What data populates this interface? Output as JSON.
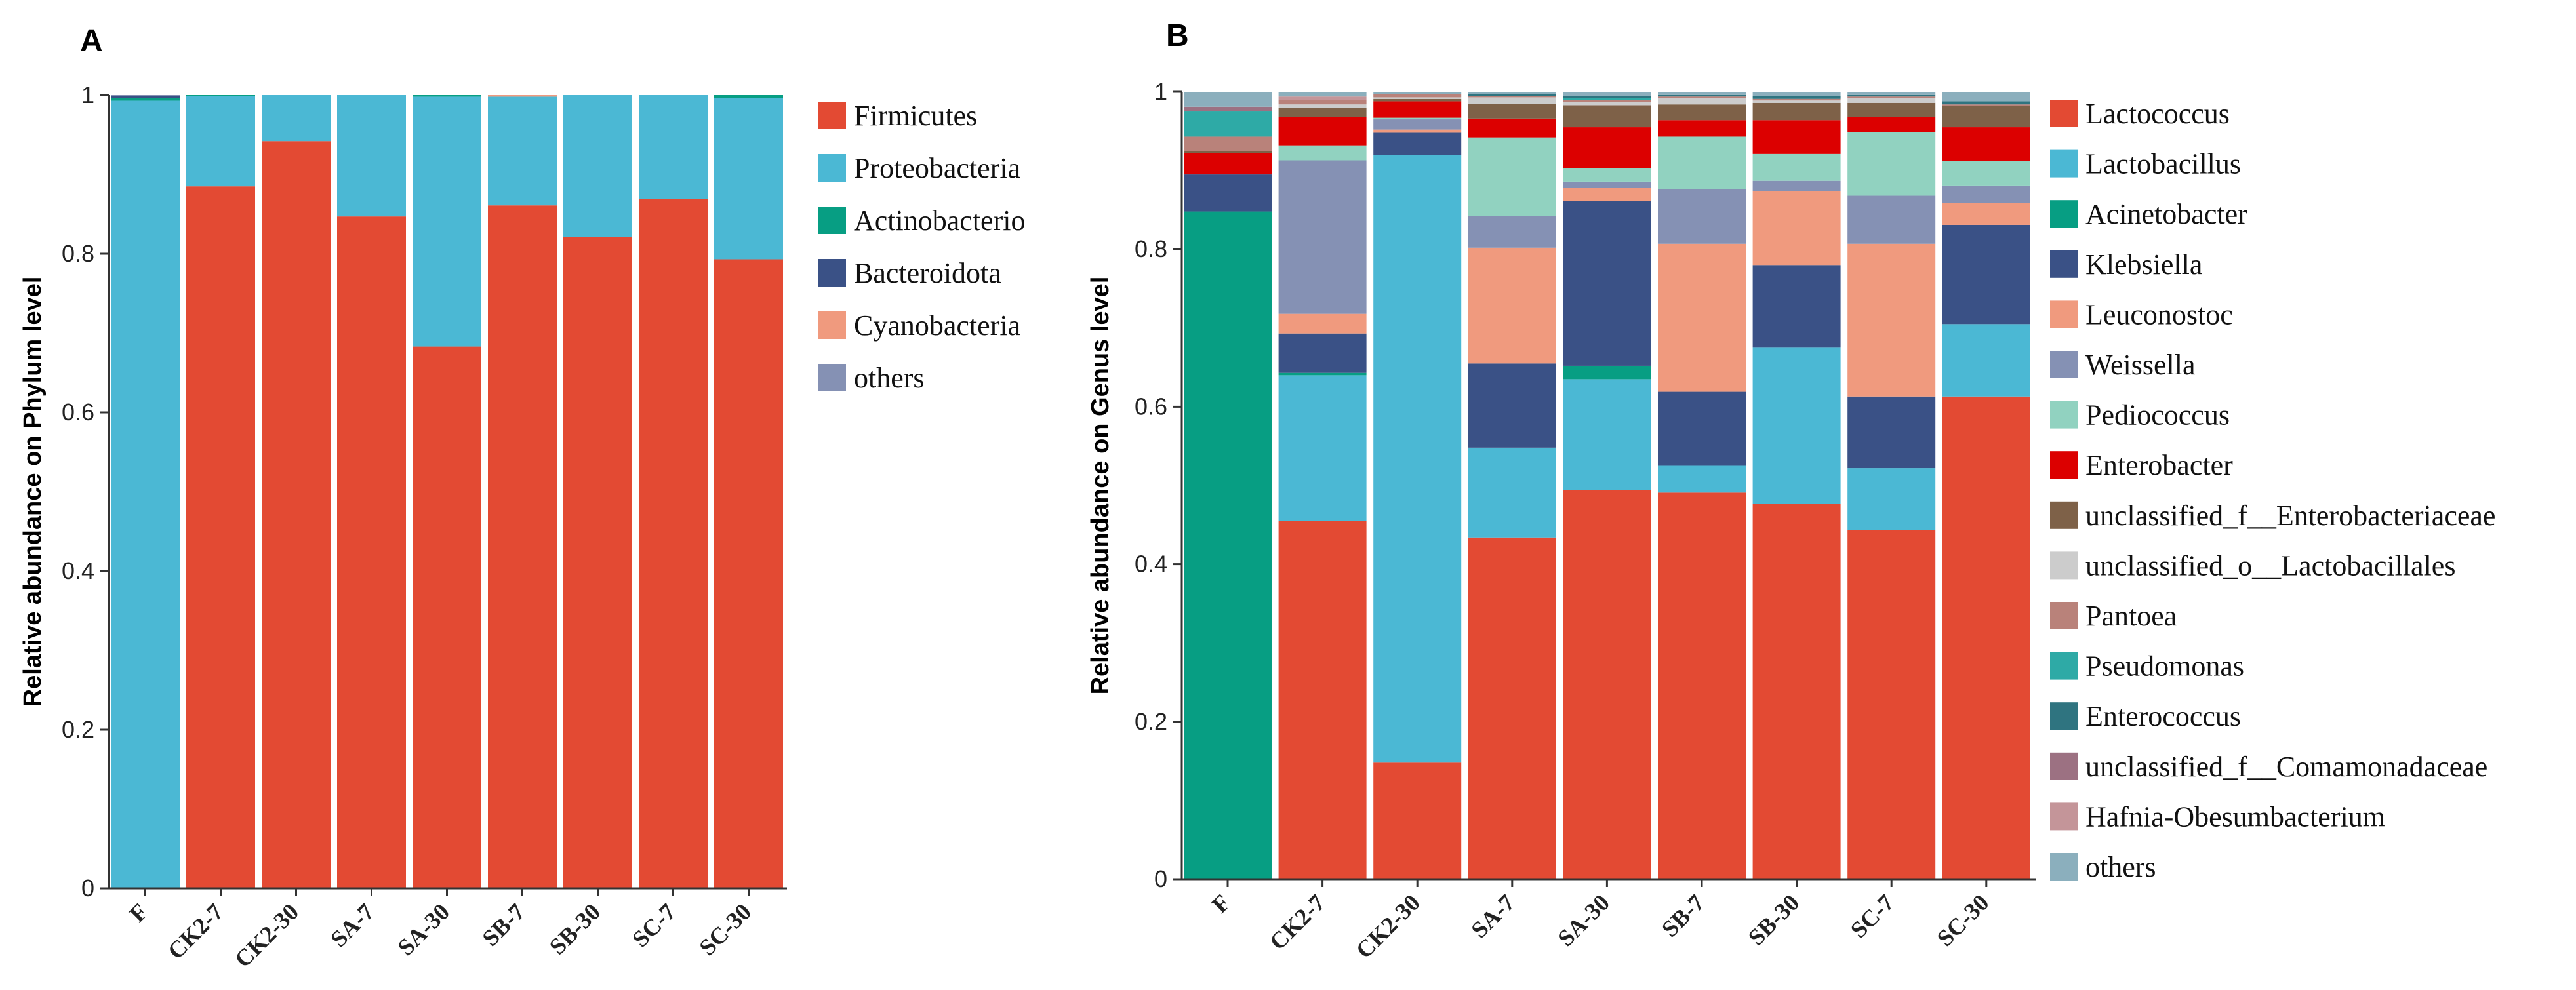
{
  "chart_data": [
    {
      "panel": "A",
      "type": "bar",
      "stacked": true,
      "ylabel": "Relative abundance on Phylum level",
      "ylim": [
        0,
        1
      ],
      "yticks": [
        "0",
        "0.2",
        "0.4",
        "0.6",
        "0.8",
        "1"
      ],
      "categories": [
        "F",
        "CK2-7",
        "CK2-30",
        "SA-7",
        "SA-30",
        "SB-7",
        "SB-30",
        "SC-7",
        "SC-30"
      ],
      "legend_position": "right",
      "series": [
        {
          "name": "Firmicutes",
          "color": "#E34A33",
          "values": [
            0,
            0.885,
            0.942,
            0.847,
            0.683,
            0.861,
            0.821,
            0.869,
            0.793
          ]
        },
        {
          "name": "Proteobacteria",
          "color": "#4BB8D4",
          "values": [
            0.993,
            0.114,
            0.058,
            0.153,
            0.315,
            0.137,
            0.179,
            0.131,
            0.203
          ]
        },
        {
          "name": "Actinobacterio",
          "color": "#079E83",
          "values": [
            0.003,
            0.001,
            0,
            0,
            0.002,
            0,
            0,
            0,
            0.004
          ]
        },
        {
          "name": "Bacteroidota",
          "color": "#3A5186",
          "values": [
            0.003,
            0,
            0,
            0,
            0,
            0,
            0,
            0,
            0
          ]
        },
        {
          "name": "Cyanobacteria",
          "color": "#F09A7E",
          "values": [
            0,
            0,
            0,
            0,
            0,
            0.002,
            0,
            0,
            0
          ]
        },
        {
          "name": "others",
          "color": "#8591B4",
          "values": [
            0.001,
            0,
            0,
            0,
            0,
            0,
            0,
            0,
            0
          ]
        }
      ]
    },
    {
      "panel": "B",
      "type": "bar",
      "stacked": true,
      "ylabel": "Relative abundance on Genus level",
      "ylim": [
        0,
        1
      ],
      "yticks": [
        "0",
        "0.2",
        "0.4",
        "0.6",
        "0.8",
        "1"
      ],
      "categories": [
        "F",
        "CK2-7",
        "CK2-30",
        "SA-7",
        "SA-30",
        "SB-7",
        "SB-30",
        "SC-7",
        "SC-30"
      ],
      "legend_position": "right",
      "series": [
        {
          "name": "Lactococcus",
          "color": "#E34A33",
          "values": [
            0,
            0.455,
            0.148,
            0.434,
            0.494,
            0.491,
            0.477,
            0.443,
            0.613
          ]
        },
        {
          "name": "Lactobacillus",
          "color": "#4BB8D4",
          "values": [
            0,
            0.185,
            0.772,
            0.114,
            0.141,
            0.034,
            0.198,
            0.079,
            0.092
          ]
        },
        {
          "name": "Acinetobacter",
          "color": "#079E83",
          "values": [
            0.848,
            0.003,
            0,
            0,
            0.017,
            0,
            0,
            0,
            0
          ]
        },
        {
          "name": "Klebsiella",
          "color": "#3A5186",
          "values": [
            0.047,
            0.05,
            0.028,
            0.107,
            0.209,
            0.094,
            0.105,
            0.091,
            0.126
          ]
        },
        {
          "name": "Leuconostoc",
          "color": "#F09A7E",
          "values": [
            0,
            0.025,
            0.004,
            0.147,
            0.017,
            0.188,
            0.094,
            0.194,
            0.028
          ]
        },
        {
          "name": "Weissella",
          "color": "#8591B4",
          "values": [
            0,
            0.195,
            0.013,
            0.04,
            0.008,
            0.069,
            0.013,
            0.061,
            0.022
          ]
        },
        {
          "name": "Pediococcus",
          "color": "#91D2C0",
          "values": [
            0,
            0.019,
            0.002,
            0.1,
            0.017,
            0.067,
            0.034,
            0.081,
            0.031
          ]
        },
        {
          "name": "Enterobacter",
          "color": "#DC0000",
          "values": [
            0.027,
            0.036,
            0.021,
            0.024,
            0.052,
            0.021,
            0.043,
            0.019,
            0.043
          ]
        },
        {
          "name": "unclassified_f__Enterobacteriaceae",
          "color": "#7E6148",
          "values": [
            0.003,
            0.012,
            0.003,
            0.019,
            0.028,
            0.02,
            0.022,
            0.018,
            0.027
          ]
        },
        {
          "name": "unclassified_o__Lactobacillales",
          "color": "#CCCCCC",
          "values": [
            0,
            0.004,
            0.002,
            0.008,
            0.004,
            0.008,
            0.003,
            0.006,
            0
          ]
        },
        {
          "name": "Pantoea",
          "color": "#B9827A",
          "values": [
            0.018,
            0.006,
            0.004,
            0.002,
            0.003,
            0.002,
            0.002,
            0.002,
            0.002
          ]
        },
        {
          "name": "Pseudomonas",
          "color": "#2EAAA6",
          "values": [
            0.032,
            0,
            0,
            0,
            0.002,
            0,
            0,
            0,
            0
          ]
        },
        {
          "name": "Enterococcus",
          "color": "#2F7480",
          "values": [
            0,
            0,
            0,
            0.002,
            0.003,
            0.002,
            0.004,
            0.002,
            0.004
          ]
        },
        {
          "name": "unclassified_f__Comamonadaceae",
          "color": "#9C7182",
          "values": [
            0.006,
            0,
            0,
            0,
            0,
            0,
            0,
            0,
            0
          ]
        },
        {
          "name": "Hafnia-Obesumbacterium",
          "color": "#C49599",
          "values": [
            0,
            0.004,
            0,
            0,
            0,
            0,
            0,
            0,
            0
          ]
        },
        {
          "name": "others",
          "color": "#8BAFBD",
          "values": [
            0.019,
            0.006,
            0.003,
            0.003,
            0.005,
            0.004,
            0.005,
            0.004,
            0.012
          ]
        }
      ]
    }
  ]
}
